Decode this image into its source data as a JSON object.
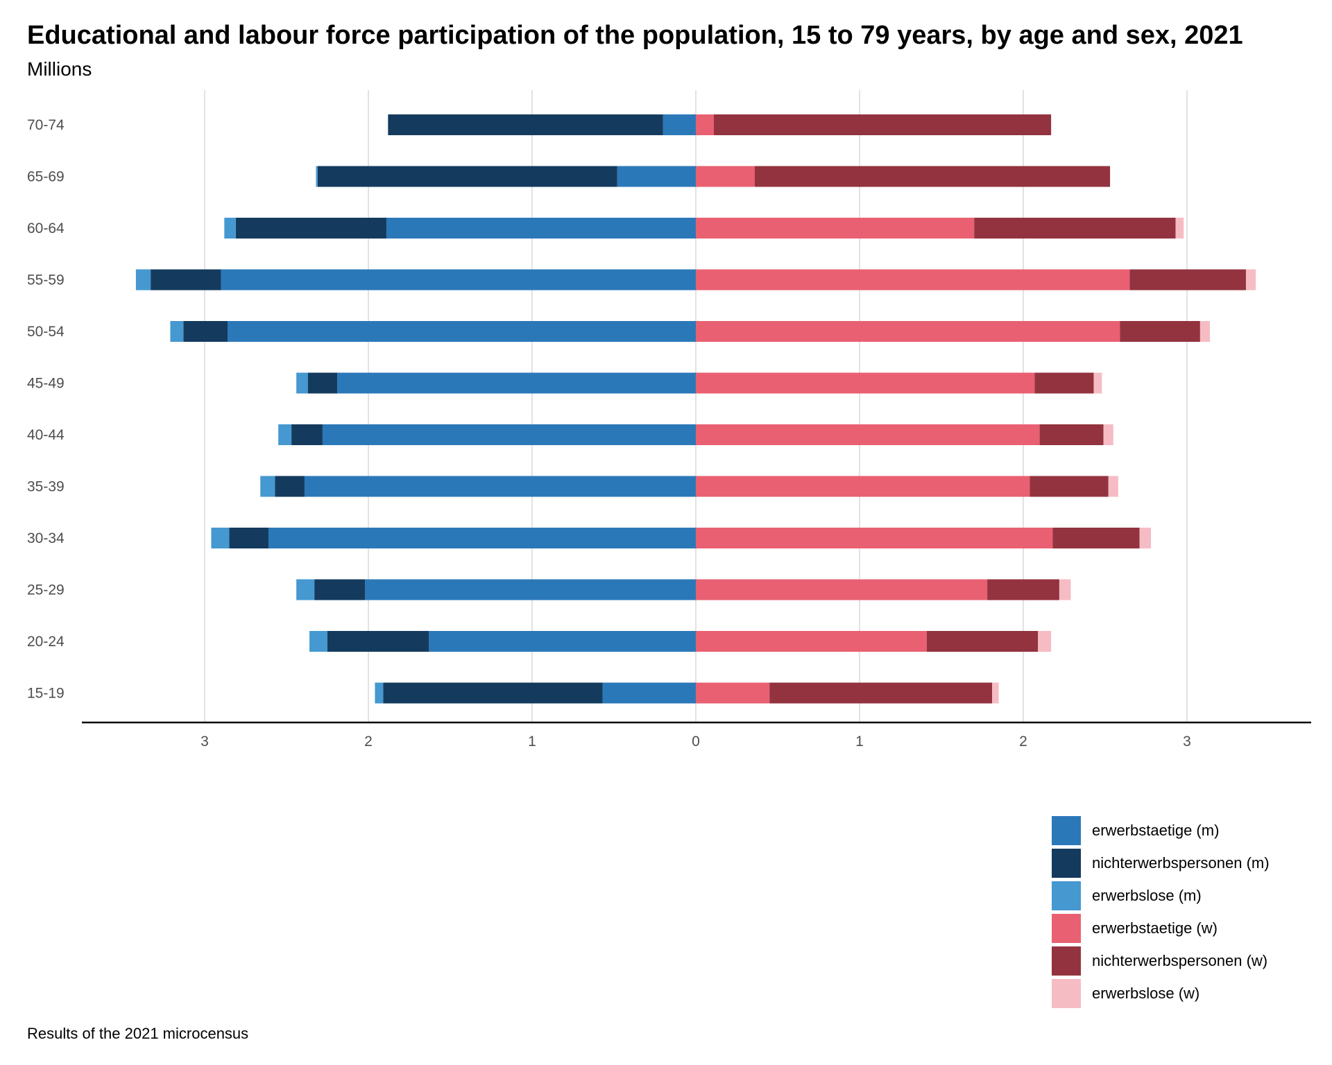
{
  "title": "Educational and labour force participation of the population, 15 to 79 years, by age and sex, 2021",
  "subtitle": "Millions",
  "caption": "Results of the 2021 microcensus",
  "chart_data": {
    "type": "bar",
    "orientation": "horizontal-diverging",
    "categories": [
      "15-19",
      "20-24",
      "25-29",
      "30-34",
      "35-39",
      "40-44",
      "45-49",
      "50-54",
      "55-59",
      "60-64",
      "65-69",
      "70-74"
    ],
    "x_ticks": [
      -3,
      -2,
      -1,
      0,
      1,
      2,
      3
    ],
    "x_tick_labels": [
      "3",
      "2",
      "1",
      "0",
      "1",
      "2",
      "3"
    ],
    "xlim": [
      -3.75,
      3.75
    ],
    "grid": "vertical",
    "legend_position": "bottom-right",
    "series": [
      {
        "name": "erwerbstaetige (m)",
        "side": "left",
        "color": "#2b78b9",
        "values": [
          0.57,
          1.63,
          2.02,
          2.61,
          2.39,
          2.28,
          2.19,
          2.86,
          2.9,
          1.89,
          0.48,
          0.2
        ]
      },
      {
        "name": "nichterwerbspersonen (m)",
        "side": "left",
        "color": "#143b5e",
        "values": [
          1.34,
          0.62,
          0.31,
          0.24,
          0.18,
          0.19,
          0.18,
          0.27,
          0.43,
          0.92,
          1.83,
          1.68
        ]
      },
      {
        "name": "erwerbslose (m)",
        "side": "left",
        "color": "#4598d0",
        "values": [
          0.05,
          0.11,
          0.11,
          0.11,
          0.09,
          0.08,
          0.07,
          0.08,
          0.09,
          0.07,
          0.01,
          0.0
        ]
      },
      {
        "name": "erwerbstaetige (w)",
        "side": "right",
        "color": "#e96072",
        "values": [
          0.45,
          1.41,
          1.78,
          2.18,
          2.04,
          2.1,
          2.07,
          2.59,
          2.65,
          1.7,
          0.36,
          0.11
        ]
      },
      {
        "name": "nichterwerbspersonen (w)",
        "side": "right",
        "color": "#93333f",
        "values": [
          1.36,
          0.68,
          0.44,
          0.53,
          0.48,
          0.39,
          0.36,
          0.49,
          0.71,
          1.23,
          2.17,
          2.06
        ]
      },
      {
        "name": "erwerbslose (w)",
        "side": "right",
        "color": "#f6bcc4",
        "values": [
          0.04,
          0.08,
          0.07,
          0.07,
          0.06,
          0.06,
          0.05,
          0.06,
          0.06,
          0.05,
          0.0,
          0.0
        ]
      }
    ]
  }
}
